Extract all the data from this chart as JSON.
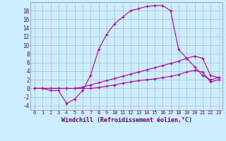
{
  "xlabel": "Windchill (Refroidissement éolien,°C)",
  "background_color": "#cceeff",
  "line_color": "#aa00aa",
  "grid_color": "#aabbcc",
  "xlim": [
    -0.5,
    23.5
  ],
  "ylim": [
    -5,
    20
  ],
  "yticks": [
    -4,
    -2,
    0,
    2,
    4,
    6,
    8,
    10,
    12,
    14,
    16,
    18
  ],
  "xticks": [
    0,
    1,
    2,
    3,
    4,
    5,
    6,
    7,
    8,
    9,
    10,
    11,
    12,
    13,
    14,
    15,
    16,
    17,
    18,
    19,
    20,
    21,
    22,
    23
  ],
  "line1_y": [
    0,
    0,
    -0.5,
    -0.5,
    -3.5,
    -2.5,
    -0.5,
    3.0,
    9.0,
    12.5,
    15.0,
    16.5,
    18.0,
    18.5,
    19.0,
    19.2,
    19.2,
    18.0,
    9.0,
    7.0,
    5.0,
    3.0,
    2.0,
    2.5
  ],
  "line2_y": [
    0,
    0,
    0,
    0,
    0,
    0,
    0.3,
    0.8,
    1.3,
    1.8,
    2.3,
    2.8,
    3.3,
    3.8,
    4.3,
    4.8,
    5.3,
    5.8,
    6.3,
    7.0,
    7.5,
    7.0,
    3.0,
    2.5
  ],
  "line3_y": [
    0,
    0,
    0,
    0,
    0,
    0,
    0,
    0,
    0.2,
    0.5,
    0.8,
    1.2,
    1.5,
    1.8,
    2.0,
    2.2,
    2.5,
    2.8,
    3.2,
    3.8,
    4.2,
    3.8,
    1.5,
    2.0
  ]
}
